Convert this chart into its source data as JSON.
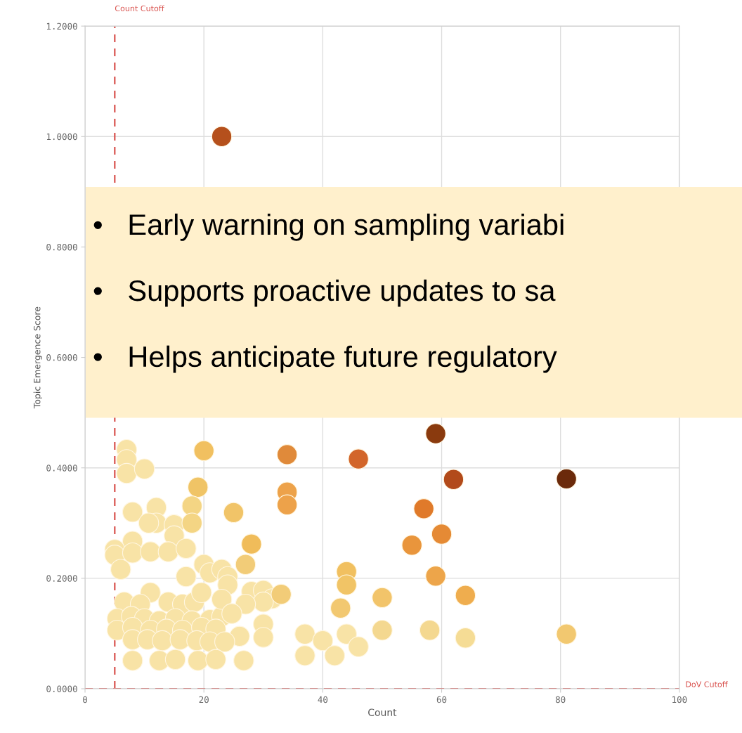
{
  "chart_data": {
    "type": "scatter",
    "xlabel": "Count",
    "ylabel": "Topic Emergence Score",
    "xlim": [
      0,
      100
    ],
    "xticks": [
      0,
      20,
      40,
      60,
      80,
      100
    ],
    "ylim": [
      0,
      1.2
    ],
    "yticks": [
      {
        "value": 0,
        "label": "0.0000"
      },
      {
        "value": 0.2,
        "label": "0.2000"
      },
      {
        "value": 0.4,
        "label": "0.4000"
      },
      {
        "value": 0.6,
        "label": "0.6000"
      },
      {
        "value": 0.8,
        "label": "0.8000"
      },
      {
        "value": 1.0,
        "label": "1.0000"
      },
      {
        "value": 1.2,
        "label": "1.2000"
      }
    ],
    "grid": true,
    "ref_lines": [
      {
        "axis": "x",
        "value": 5,
        "label": "Count Cutoff",
        "color": "#d9534f",
        "line_style": "dashed"
      },
      {
        "axis": "y",
        "value": 0,
        "label": "DoV Cutoff",
        "color": "#d9534f",
        "line_style": "dashed"
      }
    ],
    "annotations": [
      "•   Early warning on sampling variabi",
      "•   Supports proactive updates to sa",
      "•   Helps anticipate future regulatory"
    ],
    "series": [
      {
        "x": [
          7,
          7,
          7,
          10,
          8,
          12,
          12,
          10.7,
          15,
          15,
          8,
          5,
          5,
          8,
          11,
          14,
          17,
          6,
          20,
          21,
          23,
          24,
          17,
          24,
          11,
          6.6,
          9.3,
          14,
          16.4,
          18.4,
          5.4,
          7.8,
          10,
          12.5,
          15.2,
          18,
          21,
          23,
          5.4,
          8,
          11,
          13.7,
          16.4,
          19.6,
          22,
          26,
          8,
          10.5,
          13,
          16,
          18.8,
          21,
          23.5,
          8,
          12.5,
          15.2,
          19,
          22,
          26.7,
          37,
          37,
          40,
          42,
          44,
          46,
          19.6,
          23,
          28,
          30,
          31.5,
          30,
          27,
          24.7,
          30,
          30
        ],
        "values": [
          0.433,
          0.415,
          0.39,
          0.398,
          0.32,
          0.328,
          0.3,
          0.3,
          0.297,
          0.277,
          0.267,
          0.252,
          0.242,
          0.246,
          0.248,
          0.248,
          0.254,
          0.216,
          0.225,
          0.21,
          0.216,
          0.203,
          0.203,
          0.188,
          0.174,
          0.157,
          0.153,
          0.157,
          0.153,
          0.157,
          0.127,
          0.131,
          0.127,
          0.123,
          0.127,
          0.123,
          0.125,
          0.131,
          0.106,
          0.111,
          0.106,
          0.108,
          0.106,
          0.111,
          0.108,
          0.095,
          0.089,
          0.089,
          0.087,
          0.089,
          0.087,
          0.085,
          0.085,
          0.051,
          0.051,
          0.053,
          0.051,
          0.053,
          0.051,
          0.099,
          0.06,
          0.087,
          0.06,
          0.099,
          0.076,
          0.174,
          0.162,
          0.176,
          0.178,
          0.163,
          0.157,
          0.153,
          0.136,
          0.117,
          0.093
        ],
        "color": "#f8e3a6"
      },
      {
        "x": [
          23,
          59,
          46,
          62,
          81,
          34,
          34,
          34,
          57,
          60,
          55,
          59,
          64,
          50,
          44,
          44,
          43,
          58,
          64,
          50,
          81,
          20,
          19,
          18,
          18,
          25,
          28,
          27,
          33
        ],
        "values": [
          1.0,
          0.462,
          0.416,
          0.379,
          0.38,
          0.424,
          0.356,
          0.333,
          0.326,
          0.28,
          0.26,
          0.204,
          0.169,
          0.165,
          0.212,
          0.188,
          0.146,
          0.106,
          0.092,
          0.106,
          0.099,
          0.431,
          0.365,
          0.331,
          0.3,
          0.319,
          0.262,
          0.225,
          0.171
        ],
        "colors": [
          "#b5501c",
          "#8a3a0e",
          "#d2652a",
          "#b24a1a",
          "#6b2a0b",
          "#e08a3a",
          "#eda24a",
          "#eda24a",
          "#e07a2a",
          "#e58a35",
          "#e9953c",
          "#eda54a",
          "#efad4e",
          "#f2c46a",
          "#f1c060",
          "#f1c466",
          "#f2c870",
          "#f4d890",
          "#f5dc95",
          "#f4d890",
          "#f2c870",
          "#f1c060",
          "#f0c466",
          "#f4d584",
          "#f4d584",
          "#f1c468",
          "#f0bc5a",
          "#f2cc78",
          "#f2cc78"
        ]
      }
    ]
  }
}
